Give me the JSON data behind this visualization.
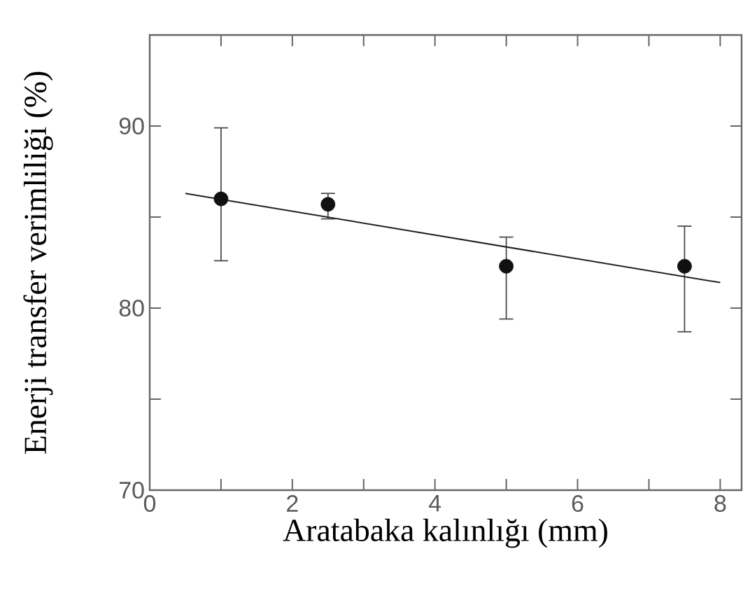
{
  "chart_data": {
    "type": "scatter",
    "xlabel": "Aratabaka kalınlığı (mm)",
    "ylabel": "Enerji transfer verimliliği (%)",
    "xlim": [
      0,
      8.3
    ],
    "ylim": [
      70,
      95
    ],
    "xticks": [
      0,
      {
        "value": 1,
        "label": null
      },
      2,
      {
        "value": 3,
        "label": null
      },
      4,
      {
        "value": 5,
        "label": null
      },
      6,
      {
        "value": 7,
        "label": null
      },
      8
    ],
    "yticks": [
      70,
      {
        "value": 75,
        "label": null
      },
      80,
      {
        "value": 85,
        "label": null
      },
      90
    ],
    "series": [
      {
        "marker": "circle",
        "color": "#111111",
        "x": [
          1,
          2.5,
          5,
          7.5
        ],
        "values": [
          86.0,
          85.7,
          82.3,
          82.3
        ],
        "errors": [
          [
            82.6,
            89.9
          ],
          [
            84.9,
            86.3
          ],
          [
            79.4,
            83.9
          ],
          [
            78.7,
            84.5
          ]
        ]
      },
      {
        "type": "line",
        "marker": "none",
        "color": "#222222",
        "line_style": "solid",
        "x": [
          0.5,
          8
        ],
        "values": [
          86.3,
          81.4
        ]
      }
    ]
  }
}
